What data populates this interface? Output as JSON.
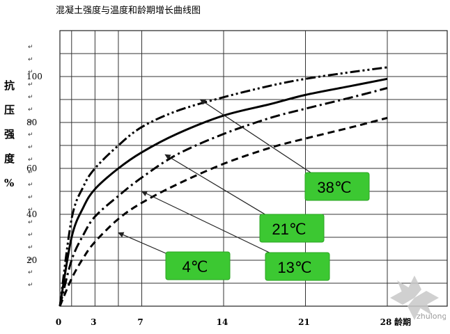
{
  "title": "混凝土强度与温度和龄期增长曲线图",
  "chart_data": {
    "type": "line",
    "title": "混凝土强度与温度和龄期增长曲线图",
    "ylabel_chars": [
      "抗",
      "压",
      "强",
      "度",
      "%"
    ],
    "xlabel": "龄期",
    "x_ticks": [
      0,
      3,
      7,
      14,
      21,
      28
    ],
    "y_ticks": [
      20,
      40,
      60,
      80,
      100
    ],
    "xlim": [
      0,
      28
    ],
    "ylim": [
      0,
      120
    ],
    "grid": true,
    "series": [
      {
        "name": "38℃",
        "style": "dash-dot-dot",
        "x": [
          0,
          1,
          2,
          3,
          5,
          7,
          10,
          14,
          18,
          21,
          25,
          28
        ],
        "y": [
          0,
          38,
          52,
          60,
          70,
          78,
          85,
          91,
          96,
          99,
          102,
          104
        ]
      },
      {
        "name": "21℃",
        "style": "solid",
        "x": [
          0,
          1,
          2,
          3,
          5,
          7,
          10,
          14,
          18,
          21,
          25,
          28
        ],
        "y": [
          0,
          30,
          43,
          51,
          60,
          67,
          75,
          83,
          88,
          92,
          96,
          99
        ]
      },
      {
        "name": "13℃",
        "style": "dash-dot",
        "x": [
          0,
          1,
          2,
          3,
          5,
          7,
          10,
          14,
          18,
          21,
          25,
          28
        ],
        "y": [
          0,
          20,
          31,
          39,
          48,
          56,
          66,
          75,
          82,
          86,
          91,
          95
        ]
      },
      {
        "name": "4℃",
        "style": "dashed",
        "x": [
          0,
          1,
          2,
          3,
          5,
          7,
          10,
          14,
          18,
          21,
          25,
          28
        ],
        "y": [
          0,
          12,
          21,
          28,
          38,
          45,
          53,
          62,
          69,
          73,
          78,
          82
        ]
      }
    ],
    "annotations": [
      {
        "label": "38℃",
        "points_to": {
          "x": 12,
          "y": 90
        }
      },
      {
        "label": "21℃",
        "points_to": {
          "x": 9,
          "y": 66
        }
      },
      {
        "label": "13℃",
        "points_to": {
          "x": 7,
          "y": 50
        }
      },
      {
        "label": "4℃",
        "points_to": {
          "x": 5,
          "y": 32
        }
      }
    ],
    "annotation_color": "#3cc832"
  },
  "watermark": "zhulong.com"
}
